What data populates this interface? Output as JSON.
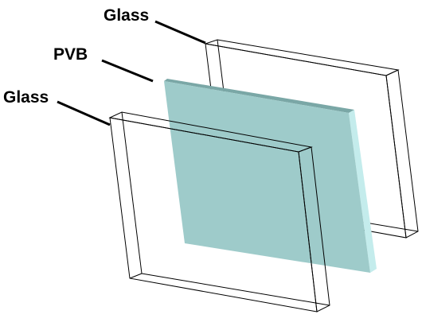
{
  "labels": {
    "glass_back": "Glass",
    "pvb": "PVB",
    "glass_front": "Glass"
  },
  "colors": {
    "pvb_face": "#9ecbca",
    "pvb_top_edge": "#7aa7a6",
    "pvb_side_edge": "#c4ecec",
    "glass_edge": "#000000",
    "leader_line": "#000000",
    "background": "#ffffff"
  }
}
